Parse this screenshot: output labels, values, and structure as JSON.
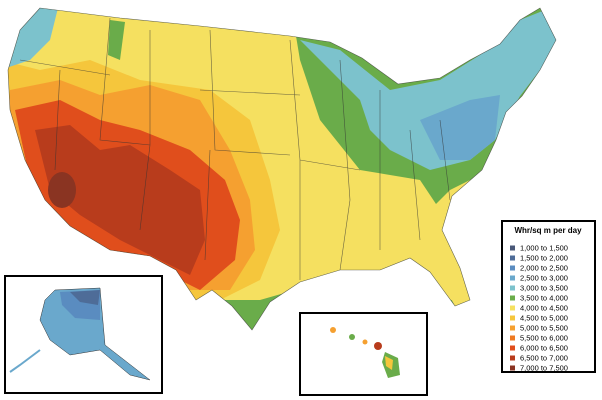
{
  "legend": {
    "title": "Whr/sq m per day",
    "items": [
      {
        "label": "1,000 to 1,500",
        "color": "#4a5878"
      },
      {
        "label": "1,500 to 2,000",
        "color": "#4e6c98"
      },
      {
        "label": "2,000 to 2,500",
        "color": "#5a8cc0"
      },
      {
        "label": "2,500 to 3,000",
        "color": "#6aa8cc"
      },
      {
        "label": "3,000 to 3,500",
        "color": "#7cc2cc"
      },
      {
        "label": "3,500 to 4,000",
        "color": "#6aac4a"
      },
      {
        "label": "4,000 to 4,500",
        "color": "#f5e060"
      },
      {
        "label": "4,500 to 5,000",
        "color": "#f5c63c"
      },
      {
        "label": "5,000 to 5,500",
        "color": "#f5a030"
      },
      {
        "label": "5,500 to 6,000",
        "color": "#ee7a22"
      },
      {
        "label": "6,000 to 6,500",
        "color": "#e04e1c"
      },
      {
        "label": "6,500 to 7,000",
        "color": "#b83c1c"
      },
      {
        "label": "7,000 to 7,500",
        "color": "#8a3422"
      }
    ]
  }
}
